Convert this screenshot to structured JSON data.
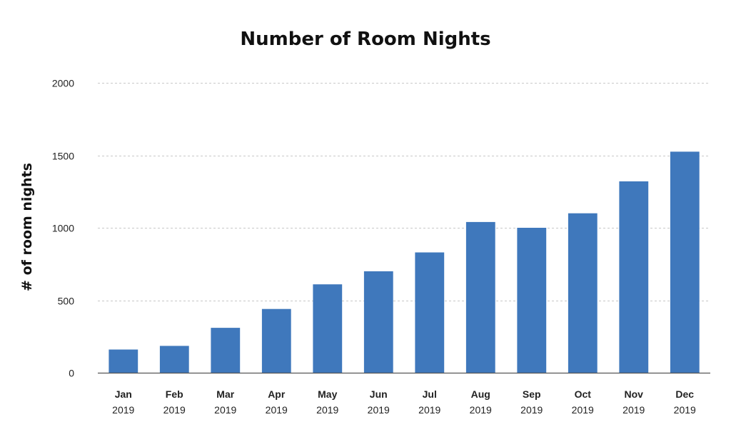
{
  "chart_data": {
    "type": "bar",
    "title": "Number of Room Nights",
    "xlabel": "",
    "ylabel": "# of room nights",
    "categories": [
      {
        "month": "Jan",
        "year": "2019"
      },
      {
        "month": "Feb",
        "year": "2019"
      },
      {
        "month": "Mar",
        "year": "2019"
      },
      {
        "month": "Apr",
        "year": "2019"
      },
      {
        "month": "May",
        "year": "2019"
      },
      {
        "month": "Jun",
        "year": "2019"
      },
      {
        "month": "Jul",
        "year": "2019"
      },
      {
        "month": "Aug",
        "year": "2019"
      },
      {
        "month": "Sep",
        "year": "2019"
      },
      {
        "month": "Oct",
        "year": "2019"
      },
      {
        "month": "Nov",
        "year": "2019"
      },
      {
        "month": "Dec",
        "year": "2019"
      }
    ],
    "values": [
      160,
      185,
      310,
      440,
      610,
      700,
      830,
      1040,
      1000,
      1100,
      1320,
      1525
    ],
    "ylim": [
      0,
      2000
    ],
    "yticks": [
      0,
      500,
      1000,
      1500,
      2000
    ],
    "grid": true,
    "legend": "none",
    "bar_color": "#3f78bc"
  }
}
